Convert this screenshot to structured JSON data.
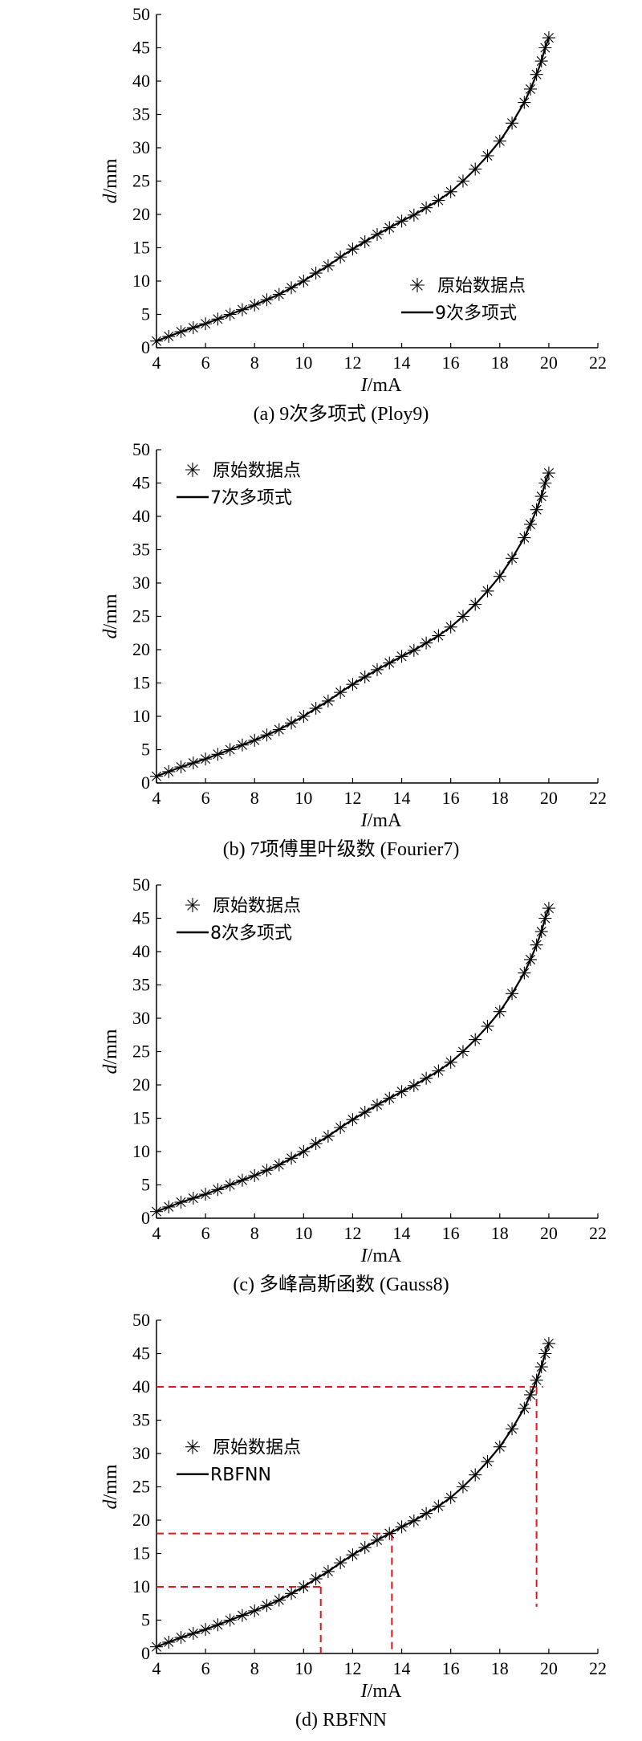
{
  "charts": [
    {
      "panel_key": "a",
      "caption": "(a) 9次多项式 (Ploy9)",
      "legend_marker_label": "原始数据点",
      "legend_line_label": "9次多项式",
      "legend_position": "bottom-right",
      "dashed_guides": []
    },
    {
      "panel_key": "b",
      "caption": "(b) 7项傅里叶级数 (Fourier7)",
      "legend_marker_label": "原始数据点",
      "legend_line_label": "7次多项式",
      "legend_position": "top-left",
      "dashed_guides": []
    },
    {
      "panel_key": "c",
      "caption": "(c) 多峰高斯函数 (Gauss8)",
      "legend_marker_label": "原始数据点",
      "legend_line_label": "8次多项式",
      "legend_position": "top-left",
      "dashed_guides": []
    },
    {
      "panel_key": "d",
      "caption": "(d) RBFNN",
      "legend_marker_label": "原始数据点",
      "legend_line_label": "RBFNN",
      "legend_position": "center-left",
      "dashed_guides": [
        {
          "y": 10,
          "x": 10.7
        },
        {
          "y": 18,
          "x": 13.6
        },
        {
          "y": 40,
          "x": 19.5
        }
      ]
    }
  ],
  "axes": {
    "xlabel_italic": "I",
    "xlabel_unit": "/mA",
    "ylabel_italic": "d",
    "ylabel_unit": "/mm",
    "xlim": [
      4,
      22
    ],
    "ylim": [
      0,
      50
    ],
    "xticks": [
      "4",
      "6",
      "8",
      "10",
      "12",
      "14",
      "16",
      "18",
      "20",
      "22"
    ],
    "yticks": [
      "0",
      "5",
      "10",
      "15",
      "20",
      "25",
      "30",
      "35",
      "40",
      "45",
      "50"
    ]
  },
  "chart_data": [
    {
      "type": "line",
      "title": "",
      "xlabel": "I/mA",
      "ylabel": "d/mm",
      "xlim": [
        4,
        22
      ],
      "ylim": [
        0,
        50
      ],
      "grid": false,
      "legend": "bottom-right",
      "series": [
        {
          "name": "原始数据点",
          "style": "star-markers",
          "x": [
            4.0,
            4.5,
            5.0,
            5.5,
            6.0,
            6.5,
            7.0,
            7.5,
            8.0,
            8.5,
            9.0,
            9.5,
            10.0,
            10.5,
            11.0,
            11.5,
            12.0,
            12.5,
            13.0,
            13.5,
            14.0,
            14.5,
            15.0,
            15.5,
            16.0,
            16.5,
            17.0,
            17.5,
            18.0,
            18.5,
            19.0,
            19.25,
            19.5,
            19.7,
            19.85,
            20.0
          ],
          "y": [
            1.0,
            1.7,
            2.4,
            3.0,
            3.6,
            4.3,
            5.0,
            5.7,
            6.4,
            7.2,
            8.0,
            9.0,
            10.0,
            11.2,
            12.3,
            13.6,
            14.8,
            15.9,
            17.0,
            18.0,
            19.0,
            19.9,
            21.0,
            22.1,
            23.4,
            25.0,
            26.8,
            28.8,
            31.0,
            33.7,
            36.8,
            38.8,
            41.0,
            43.0,
            45.0,
            46.5
          ]
        },
        {
          "name": "9次多项式",
          "style": "solid-line",
          "x": [
            4.0,
            4.5,
            5.0,
            5.5,
            6.0,
            6.5,
            7.0,
            7.5,
            8.0,
            8.5,
            9.0,
            9.5,
            10.0,
            10.5,
            11.0,
            11.5,
            12.0,
            12.5,
            13.0,
            13.5,
            14.0,
            14.5,
            15.0,
            15.5,
            16.0,
            16.5,
            17.0,
            17.5,
            18.0,
            18.5,
            19.0,
            19.25,
            19.5,
            19.7,
            19.85,
            20.0
          ],
          "y": [
            1.0,
            1.7,
            2.4,
            3.0,
            3.6,
            4.3,
            5.0,
            5.7,
            6.4,
            7.2,
            8.0,
            9.0,
            10.0,
            11.2,
            12.3,
            13.6,
            14.8,
            15.9,
            17.0,
            18.0,
            19.0,
            19.9,
            21.0,
            22.1,
            23.4,
            25.0,
            26.8,
            28.8,
            31.0,
            33.7,
            36.8,
            38.8,
            41.0,
            43.0,
            45.0,
            46.5
          ]
        }
      ]
    },
    {
      "type": "line",
      "title": "",
      "xlabel": "I/mA",
      "ylabel": "d/mm",
      "xlim": [
        4,
        22
      ],
      "ylim": [
        0,
        50
      ],
      "grid": false,
      "legend": "top-left",
      "series": [
        {
          "name": "原始数据点",
          "style": "star-markers",
          "x": [
            4.0,
            4.5,
            5.0,
            5.5,
            6.0,
            6.5,
            7.0,
            7.5,
            8.0,
            8.5,
            9.0,
            9.5,
            10.0,
            10.5,
            11.0,
            11.5,
            12.0,
            12.5,
            13.0,
            13.5,
            14.0,
            14.5,
            15.0,
            15.5,
            16.0,
            16.5,
            17.0,
            17.5,
            18.0,
            18.5,
            19.0,
            19.25,
            19.5,
            19.7,
            19.85,
            20.0
          ],
          "y": [
            1.0,
            1.7,
            2.4,
            3.0,
            3.6,
            4.3,
            5.0,
            5.7,
            6.4,
            7.2,
            8.0,
            9.0,
            10.0,
            11.2,
            12.3,
            13.6,
            14.8,
            15.9,
            17.0,
            18.0,
            19.0,
            19.9,
            21.0,
            22.1,
            23.4,
            25.0,
            26.8,
            28.8,
            31.0,
            33.7,
            36.8,
            38.8,
            41.0,
            43.0,
            45.0,
            46.5
          ]
        },
        {
          "name": "7次多项式",
          "style": "solid-line",
          "x": [
            4.0,
            4.5,
            5.0,
            5.5,
            6.0,
            6.5,
            7.0,
            7.5,
            8.0,
            8.5,
            9.0,
            9.5,
            10.0,
            10.5,
            11.0,
            11.5,
            12.0,
            12.5,
            13.0,
            13.5,
            14.0,
            14.5,
            15.0,
            15.5,
            16.0,
            16.5,
            17.0,
            17.5,
            18.0,
            18.5,
            19.0,
            19.25,
            19.5,
            19.7,
            19.85,
            20.0
          ],
          "y": [
            1.0,
            1.7,
            2.4,
            3.0,
            3.6,
            4.3,
            5.0,
            5.7,
            6.4,
            7.2,
            8.0,
            9.0,
            10.0,
            11.2,
            12.3,
            13.6,
            14.8,
            15.9,
            17.0,
            18.0,
            19.0,
            19.9,
            21.0,
            22.1,
            23.4,
            25.0,
            26.8,
            28.8,
            31.0,
            33.7,
            36.8,
            38.8,
            41.0,
            43.0,
            45.0,
            46.5
          ]
        }
      ]
    },
    {
      "type": "line",
      "title": "",
      "xlabel": "I/mA",
      "ylabel": "d/mm",
      "xlim": [
        4,
        22
      ],
      "ylim": [
        0,
        50
      ],
      "grid": false,
      "legend": "top-left",
      "series": [
        {
          "name": "原始数据点",
          "style": "star-markers",
          "x": [
            4.0,
            4.5,
            5.0,
            5.5,
            6.0,
            6.5,
            7.0,
            7.5,
            8.0,
            8.5,
            9.0,
            9.5,
            10.0,
            10.5,
            11.0,
            11.5,
            12.0,
            12.5,
            13.0,
            13.5,
            14.0,
            14.5,
            15.0,
            15.5,
            16.0,
            16.5,
            17.0,
            17.5,
            18.0,
            18.5,
            19.0,
            19.25,
            19.5,
            19.7,
            19.85,
            20.0
          ],
          "y": [
            1.0,
            1.7,
            2.4,
            3.0,
            3.6,
            4.3,
            5.0,
            5.7,
            6.4,
            7.2,
            8.0,
            9.0,
            10.0,
            11.2,
            12.3,
            13.6,
            14.8,
            15.9,
            17.0,
            18.0,
            19.0,
            19.9,
            21.0,
            22.1,
            23.4,
            25.0,
            26.8,
            28.8,
            31.0,
            33.7,
            36.8,
            38.8,
            41.0,
            43.0,
            45.0,
            46.5
          ]
        },
        {
          "name": "8次多项式",
          "style": "solid-line",
          "x": [
            4.0,
            4.5,
            5.0,
            5.5,
            6.0,
            6.5,
            7.0,
            7.5,
            8.0,
            8.5,
            9.0,
            9.5,
            10.0,
            10.5,
            11.0,
            11.5,
            12.0,
            12.5,
            13.0,
            13.5,
            14.0,
            14.5,
            15.0,
            15.5,
            16.0,
            16.5,
            17.0,
            17.5,
            18.0,
            18.5,
            19.0,
            19.25,
            19.5,
            19.7,
            19.85,
            20.0
          ],
          "y": [
            1.0,
            1.7,
            2.4,
            3.0,
            3.6,
            4.3,
            5.0,
            5.7,
            6.4,
            7.2,
            8.0,
            9.0,
            10.0,
            11.2,
            12.3,
            13.6,
            14.8,
            15.9,
            17.0,
            18.0,
            19.0,
            19.9,
            21.0,
            22.1,
            23.4,
            25.0,
            26.8,
            28.8,
            31.0,
            33.7,
            36.8,
            38.8,
            41.0,
            43.0,
            45.0,
            46.5
          ]
        }
      ]
    },
    {
      "type": "line",
      "title": "",
      "xlabel": "I/mA",
      "ylabel": "d/mm",
      "xlim": [
        4,
        22
      ],
      "ylim": [
        0,
        50
      ],
      "grid": false,
      "legend": "center-left",
      "series": [
        {
          "name": "原始数据点",
          "style": "star-markers",
          "x": [
            4.0,
            4.5,
            5.0,
            5.5,
            6.0,
            6.5,
            7.0,
            7.5,
            8.0,
            8.5,
            9.0,
            9.5,
            10.0,
            10.5,
            11.0,
            11.5,
            12.0,
            12.5,
            13.0,
            13.5,
            14.0,
            14.5,
            15.0,
            15.5,
            16.0,
            16.5,
            17.0,
            17.5,
            18.0,
            18.5,
            19.0,
            19.25,
            19.5,
            19.7,
            19.85,
            20.0
          ],
          "y": [
            1.0,
            1.7,
            2.4,
            3.0,
            3.6,
            4.3,
            5.0,
            5.7,
            6.4,
            7.2,
            8.0,
            9.0,
            10.0,
            11.2,
            12.3,
            13.6,
            14.8,
            15.9,
            17.0,
            18.0,
            19.0,
            19.9,
            21.0,
            22.1,
            23.4,
            25.0,
            26.8,
            28.8,
            31.0,
            33.7,
            36.8,
            38.8,
            41.0,
            43.0,
            45.0,
            46.5
          ]
        },
        {
          "name": "RBFNN",
          "style": "solid-line",
          "x": [
            4.0,
            4.5,
            5.0,
            5.5,
            6.0,
            6.5,
            7.0,
            7.5,
            8.0,
            8.5,
            9.0,
            9.5,
            10.0,
            10.5,
            11.0,
            11.5,
            12.0,
            12.5,
            13.0,
            13.5,
            14.0,
            14.5,
            15.0,
            15.5,
            16.0,
            16.5,
            17.0,
            17.5,
            18.0,
            18.5,
            19.0,
            19.25,
            19.5,
            19.7,
            19.85,
            20.0
          ],
          "y": [
            1.0,
            1.7,
            2.4,
            3.0,
            3.6,
            4.3,
            5.0,
            5.7,
            6.4,
            7.2,
            8.0,
            9.0,
            10.0,
            11.2,
            12.3,
            13.6,
            14.8,
            15.9,
            17.0,
            18.0,
            19.0,
            19.9,
            21.0,
            22.1,
            23.4,
            25.0,
            26.8,
            28.8,
            31.0,
            33.7,
            36.8,
            38.8,
            41.0,
            43.0,
            45.0,
            46.5
          ]
        }
      ],
      "reference_lines": [
        {
          "y": 10,
          "x": 10.7
        },
        {
          "y": 18,
          "x": 13.6
        },
        {
          "y": 40,
          "x": 19.5
        }
      ]
    }
  ],
  "colors": {
    "axis": "#000000",
    "line": "#000000",
    "marker": "#000000",
    "guide": "#e0181b"
  }
}
